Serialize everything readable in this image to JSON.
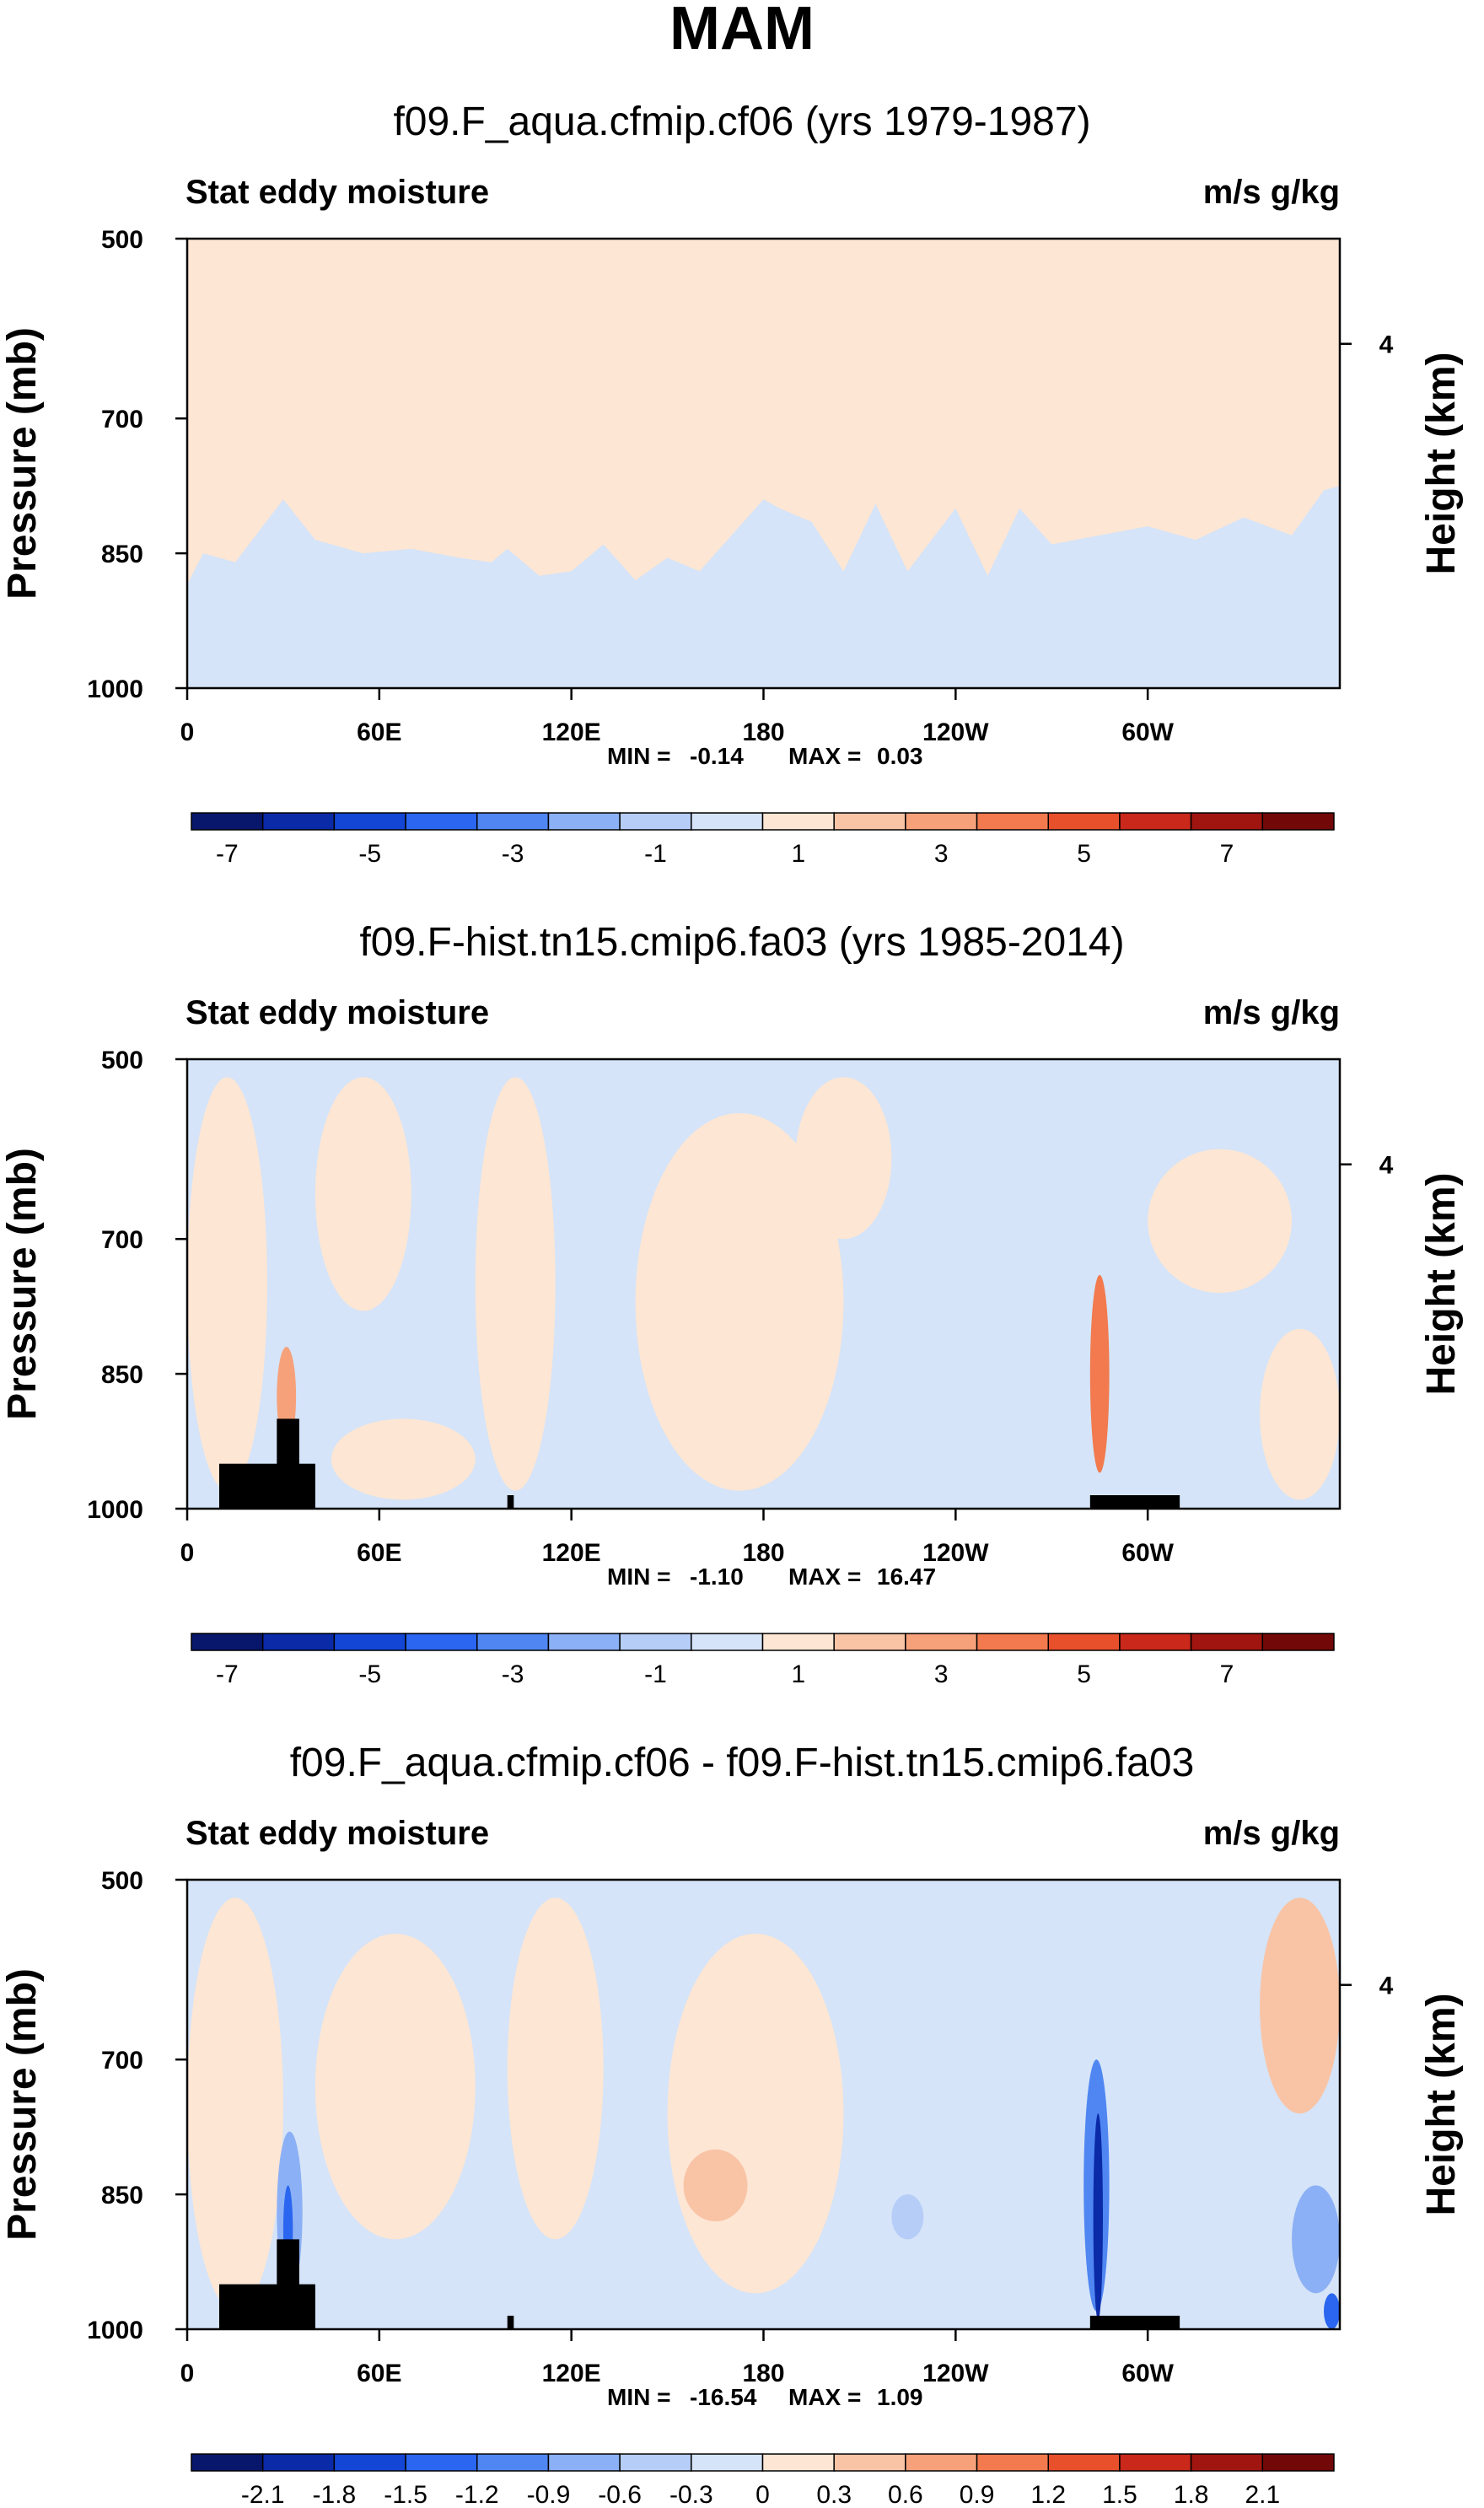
{
  "main_title": "MAM",
  "colors": {
    "positive_fill": "#fde6d4",
    "negative_fill": "#d5e4f8",
    "topography": "#000000"
  },
  "chart_data": [
    {
      "type": "heatmap",
      "title": "f09.F_aqua.cfmip.cf06 (yrs 1979-1987)",
      "left_label": "Stat eddy moisture",
      "right_label": "m/s g/kg",
      "ylabel": "Pressure (mb)",
      "ylabel_right": "Height (km)",
      "x_ticks": [
        "0",
        "60E",
        "120E",
        "180",
        "120W",
        "60W"
      ],
      "x_tick_values": [
        0,
        60,
        120,
        180,
        240,
        300
      ],
      "xlim": [
        0,
        360
      ],
      "y_ticks": [
        "500",
        "700",
        "850",
        "1000"
      ],
      "y_tick_values": [
        500,
        700,
        850,
        1000
      ],
      "ylim": [
        1000,
        500
      ],
      "right_ticks": [
        "4"
      ],
      "right_tick_pressure": [
        617
      ],
      "min_label": "MIN = ",
      "min_value": "-0.14",
      "max_label": "MAX = ",
      "max_value": "0.03",
      "colorbar": {
        "colors": [
          "#08176b",
          "#0a2aa8",
          "#1446d6",
          "#2a66ef",
          "#4f86f2",
          "#8cb0f5",
          "#b6cdf8",
          "#d5e4f8",
          "#fde6d4",
          "#f9c4a6",
          "#f6a17a",
          "#f27a4e",
          "#e8502c",
          "#c9281a",
          "#a01510",
          "#730808"
        ],
        "label_slots": [
          1,
          3,
          5,
          7,
          9,
          11,
          13,
          15
        ],
        "labels": [
          "-7",
          "-5",
          "-3",
          "-1",
          "1",
          "3",
          "5",
          "7"
        ]
      },
      "boundary": {
        "lon": [
          0,
          5,
          15,
          30,
          40,
          55,
          70,
          85,
          95,
          100,
          110,
          120,
          130,
          140,
          150,
          160,
          170,
          180,
          185,
          195,
          205,
          215,
          225,
          240,
          250,
          260,
          270,
          285,
          300,
          315,
          330,
          345,
          355,
          360
        ],
        "pressure": [
          885,
          850,
          860,
          790,
          835,
          850,
          845,
          855,
          860,
          845,
          875,
          870,
          840,
          880,
          855,
          870,
          830,
          790,
          800,
          815,
          870,
          795,
          870,
          800,
          875,
          800,
          840,
          830,
          820,
          835,
          810,
          830,
          780,
          775
        ]
      },
      "topography": []
    },
    {
      "type": "heatmap",
      "title": "f09.F-hist.tn15.cmip6.fa03 (yrs 1985-2014)",
      "left_label": "Stat eddy moisture",
      "right_label": "m/s g/kg",
      "ylabel": "Pressure (mb)",
      "ylabel_right": "Height (km)",
      "x_ticks": [
        "0",
        "60E",
        "120E",
        "180",
        "120W",
        "60W"
      ],
      "x_tick_values": [
        0,
        60,
        120,
        180,
        240,
        300
      ],
      "xlim": [
        0,
        360
      ],
      "y_ticks": [
        "500",
        "700",
        "850",
        "1000"
      ],
      "y_tick_values": [
        500,
        700,
        850,
        1000
      ],
      "ylim": [
        1000,
        500
      ],
      "right_ticks": [
        "4"
      ],
      "right_tick_pressure": [
        617
      ],
      "min_label": "MIN = ",
      "min_value": "-1.10",
      "max_label": "MAX = ",
      "max_value": "16.47",
      "colorbar": {
        "colors": [
          "#08176b",
          "#0a2aa8",
          "#1446d6",
          "#2a66ef",
          "#4f86f2",
          "#8cb0f5",
          "#b6cdf8",
          "#d5e4f8",
          "#fde6d4",
          "#f9c4a6",
          "#f6a17a",
          "#f27a4e",
          "#e8502c",
          "#c9281a",
          "#a01510",
          "#730808"
        ],
        "label_slots": [
          1,
          3,
          5,
          7,
          9,
          11,
          13,
          15
        ],
        "labels": [
          "-7",
          "-5",
          "-3",
          "-1",
          "1",
          "3",
          "5",
          "7"
        ]
      },
      "topography": [
        {
          "lon": [
            10,
            40
          ],
          "pressure": 950
        },
        {
          "lon": [
            28,
            35
          ],
          "pressure": 900
        },
        {
          "lon": [
            100,
            102
          ],
          "pressure": 985
        },
        {
          "lon": [
            282,
            310
          ],
          "pressure": 985
        }
      ]
    },
    {
      "type": "heatmap",
      "title": "f09.F_aqua.cfmip.cf06 - f09.F-hist.tn15.cmip6.fa03",
      "left_label": "Stat eddy moisture",
      "right_label": "m/s g/kg",
      "ylabel": "Pressure (mb)",
      "ylabel_right": "Height (km)",
      "x_ticks": [
        "0",
        "60E",
        "120E",
        "180",
        "120W",
        "60W"
      ],
      "x_tick_values": [
        0,
        60,
        120,
        180,
        240,
        300
      ],
      "xlim": [
        0,
        360
      ],
      "y_ticks": [
        "500",
        "700",
        "850",
        "1000"
      ],
      "y_tick_values": [
        500,
        700,
        850,
        1000
      ],
      "ylim": [
        1000,
        500
      ],
      "right_ticks": [
        "4"
      ],
      "right_tick_pressure": [
        617
      ],
      "min_label": "MIN = ",
      "min_value": "-16.54",
      "max_label": "MAX = ",
      "max_value": "1.09",
      "colorbar": {
        "colors": [
          "#08176b",
          "#0a2aa8",
          "#1446d6",
          "#2a66ef",
          "#4f86f2",
          "#8cb0f5",
          "#b6cdf8",
          "#d5e4f8",
          "#fde6d4",
          "#f9c4a6",
          "#f6a17a",
          "#f27a4e",
          "#e8502c",
          "#c9281a",
          "#a01510",
          "#730808"
        ],
        "label_slots": [
          1,
          2,
          3,
          4,
          5,
          6,
          7,
          8,
          9,
          10,
          11,
          12,
          13,
          14,
          15
        ],
        "labels": [
          "-2.1",
          "-1.8",
          "-1.5",
          "-1.2",
          "-0.9",
          "-0.6",
          "-0.3",
          "0",
          "0.3",
          "0.6",
          "0.9",
          "1.2",
          "1.5",
          "1.8",
          "2.1"
        ]
      },
      "topography": [
        {
          "lon": [
            10,
            40
          ],
          "pressure": 950
        },
        {
          "lon": [
            28,
            35
          ],
          "pressure": 900
        },
        {
          "lon": [
            100,
            102
          ],
          "pressure": 985
        },
        {
          "lon": [
            282,
            310
          ],
          "pressure": 985
        }
      ]
    }
  ]
}
